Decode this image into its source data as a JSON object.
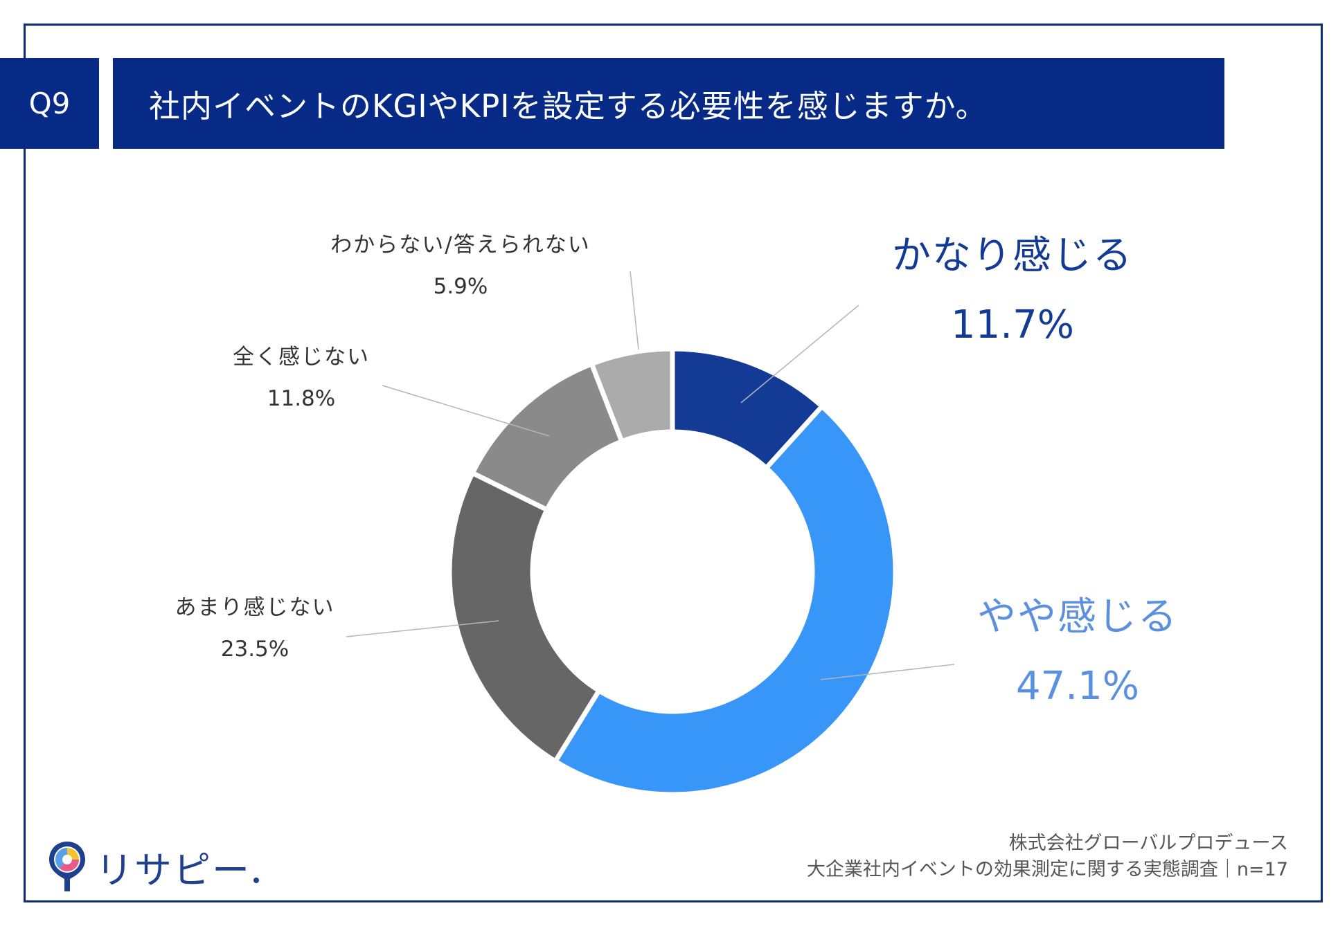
{
  "header": {
    "question_number": "Q9",
    "title": "社内イベントのKGIやKPIを設定する必要性を感じますか。"
  },
  "chart_data": {
    "type": "pie",
    "variant": "donut",
    "title": "社内イベントのKGIやKPIを設定する必要性を感じますか。",
    "categories": [
      "かなり感じる",
      "やや感じる",
      "あまり感じない",
      "全く感じない",
      "わからない/答えられない"
    ],
    "values": [
      11.7,
      47.1,
      23.5,
      11.8,
      5.9
    ],
    "value_labels": [
      "11.7%",
      "47.1%",
      "23.5%",
      "11.8%",
      "5.9%"
    ],
    "colors": [
      "#133b95",
      "#3796f7",
      "#666666",
      "#8a8a8a",
      "#ababab"
    ],
    "label_colors": [
      "#133b95",
      "#5b8fdf",
      "#333333",
      "#333333",
      "#333333"
    ],
    "unit": "%"
  },
  "brand": {
    "logo_text": "リサピー"
  },
  "footer": {
    "company": "株式会社グローバルプロデュース",
    "survey": "大企業社内イベントの効果測定に関する実態調査｜n=17"
  }
}
